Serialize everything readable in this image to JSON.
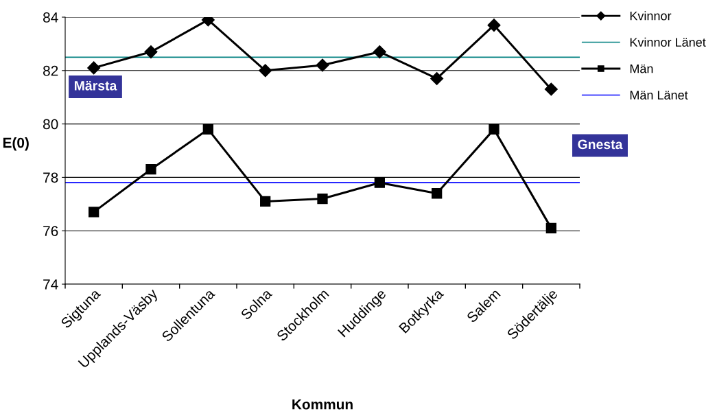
{
  "chart_data": {
    "type": "line",
    "xlabel": "Kommun",
    "ylabel": "E(0)",
    "categories": [
      "Sigtuna",
      "Upplands-Väsby",
      "Sollentuna",
      "Solna",
      "Stockholm",
      "Huddinge",
      "Botkyrka",
      "Salem",
      "Södertälje"
    ],
    "series": [
      {
        "name": "Kvinnor",
        "color": "#000000",
        "marker": "diamond",
        "values": [
          82.1,
          82.7,
          83.9,
          82.0,
          82.2,
          82.7,
          81.7,
          83.7,
          81.3
        ]
      },
      {
        "name": "Män",
        "color": "#000000",
        "marker": "square",
        "values": [
          76.7,
          78.3,
          79.8,
          77.1,
          77.2,
          77.8,
          77.4,
          79.8,
          76.1
        ]
      }
    ],
    "ref_lines": [
      {
        "axis": "y",
        "value": 82.5,
        "label": "Kvinnor Länet",
        "color": "#008080"
      },
      {
        "axis": "y",
        "value": 77.8,
        "label": "Män Länet",
        "color": "#0000ff"
      }
    ],
    "ylim": [
      74,
      84
    ],
    "yticks": [
      74,
      76,
      78,
      80,
      82,
      84
    ],
    "grid": "y",
    "legend": "top right",
    "annotations": [
      "Märsta",
      "Gnesta"
    ]
  }
}
